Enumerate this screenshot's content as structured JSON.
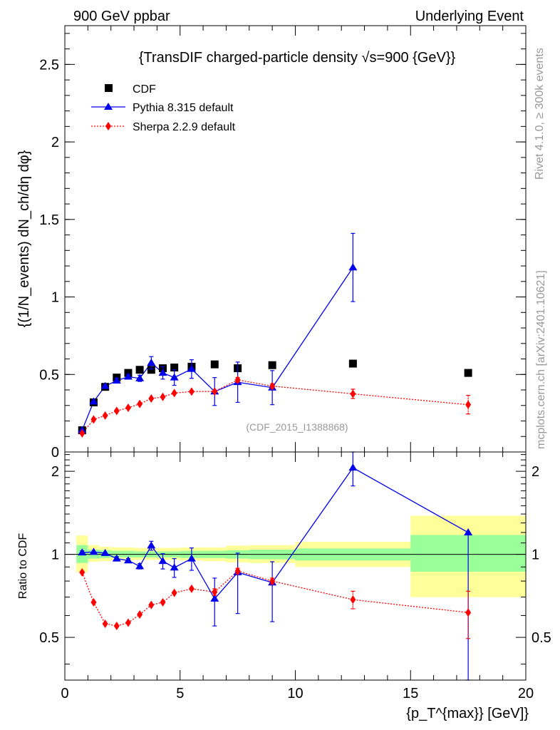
{
  "header": {
    "left": "900 GeV ppbar",
    "right": "Underlying Event"
  },
  "side_labels": {
    "rivet": "Rivet 4.1.0, ≥ 300k events",
    "mcplots": "mcplots.cern.ch [arXiv:2401.10621]"
  },
  "chart_data": [
    {
      "type": "scatter",
      "title": "{TransDIF charged-particle density √s=900 {GeV}}",
      "ylabel": "{(1/N_events) dN_ch/dη dφ}",
      "xlabel": "",
      "xlim": [
        0,
        20
      ],
      "ylim": [
        0,
        2.75
      ],
      "watermark": "(CDF_2015_I1388868)",
      "yticks": [
        {
          "v": 0,
          "label": "0"
        },
        {
          "v": 0.5,
          "label": "0.5"
        },
        {
          "v": 1,
          "label": "1"
        },
        {
          "v": 1.5,
          "label": "1.5"
        },
        {
          "v": 2,
          "label": "2"
        },
        {
          "v": 2.5,
          "label": "2.5"
        }
      ],
      "legend": [
        {
          "name": "CDF",
          "marker": "square",
          "color": "#000000"
        },
        {
          "name": "Pythia 8.315 default",
          "marker": "triangle",
          "color": "#0000ee"
        },
        {
          "name": "Sherpa 2.2.9 default",
          "marker": "diamond",
          "color": "#ff0000"
        }
      ],
      "series": [
        {
          "name": "CDF",
          "color": "#000000",
          "x": [
            0.75,
            1.25,
            1.75,
            2.25,
            2.75,
            3.25,
            3.75,
            4.25,
            4.75,
            5.5,
            6.5,
            7.5,
            9,
            12.5,
            17.5
          ],
          "y": [
            0.14,
            0.32,
            0.42,
            0.48,
            0.51,
            0.53,
            0.53,
            0.54,
            0.545,
            0.55,
            0.565,
            0.54,
            0.56,
            0.57,
            0.51
          ],
          "err": [
            0.01,
            0.01,
            0.01,
            0.01,
            0.01,
            0.01,
            0.01,
            0.01,
            0.01,
            0.01,
            0.01,
            0.01,
            0.01,
            0.01,
            0.01
          ]
        },
        {
          "name": "Pythia 8.315 default",
          "color": "#0000ee",
          "x": [
            0.75,
            1.25,
            1.75,
            2.25,
            2.75,
            3.25,
            3.75,
            4.25,
            4.75,
            5.5,
            6.5,
            7.5,
            9,
            12.5
          ],
          "y": [
            0.14,
            0.325,
            0.425,
            0.46,
            0.485,
            0.475,
            0.575,
            0.51,
            0.48,
            0.535,
            0.39,
            0.45,
            0.415,
            1.19
          ],
          "err": [
            0.01,
            0.01,
            0.01,
            0.015,
            0.015,
            0.02,
            0.04,
            0.04,
            0.05,
            0.06,
            0.09,
            0.13,
            0.11,
            0.22
          ]
        },
        {
          "name": "Sherpa 2.2.9 default",
          "color": "#ff0000",
          "x": [
            0.75,
            1.25,
            1.75,
            2.25,
            2.75,
            3.25,
            3.75,
            4.25,
            4.75,
            5.5,
            6.5,
            7.5,
            9,
            12.5,
            17.5
          ],
          "y": [
            0.12,
            0.21,
            0.235,
            0.265,
            0.285,
            0.31,
            0.345,
            0.355,
            0.38,
            0.39,
            0.39,
            0.465,
            0.425,
            0.375,
            0.305
          ],
          "err": [
            0.005,
            0.006,
            0.006,
            0.007,
            0.008,
            0.008,
            0.009,
            0.009,
            0.01,
            0.01,
            0.012,
            0.015,
            0.015,
            0.03,
            0.06
          ]
        }
      ]
    },
    {
      "type": "scatter",
      "title": "",
      "ylabel": "Ratio to CDF",
      "xlabel": "{p_T^{max}} [GeV]}",
      "xlim": [
        0,
        20
      ],
      "ylim": [
        0.35,
        2.35
      ],
      "yscale": "log",
      "xticks": [
        {
          "v": 0,
          "label": "0"
        },
        {
          "v": 5,
          "label": "5"
        },
        {
          "v": 10,
          "label": "10"
        },
        {
          "v": 15,
          "label": "15"
        },
        {
          "v": 20,
          "label": "20"
        }
      ],
      "yticks": [
        {
          "v": 0.5,
          "label": "0.5"
        },
        {
          "v": 1,
          "label": "1"
        },
        {
          "v": 2,
          "label": "2"
        }
      ],
      "uncertainty_bands": {
        "bins": [
          [
            0.5,
            1.0
          ],
          [
            1.0,
            1.5
          ],
          [
            1.5,
            2.0
          ],
          [
            2.0,
            2.5
          ],
          [
            2.5,
            3.0
          ],
          [
            3.0,
            3.5
          ],
          [
            3.5,
            4.0
          ],
          [
            4.0,
            4.5
          ],
          [
            4.5,
            5.0
          ],
          [
            5.0,
            6.0
          ],
          [
            6.0,
            7.0
          ],
          [
            7.0,
            8.0
          ],
          [
            8.0,
            10.0
          ],
          [
            10.0,
            15.0
          ],
          [
            15.0,
            20.0
          ]
        ],
        "stat_lo": [
          0.93,
          0.965,
          0.97,
          0.975,
          0.975,
          0.975,
          0.975,
          0.975,
          0.975,
          0.97,
          0.97,
          0.965,
          0.96,
          0.95,
          0.865
        ],
        "stat_hi": [
          1.08,
          1.04,
          1.035,
          1.03,
          1.03,
          1.025,
          1.025,
          1.025,
          1.025,
          1.03,
          1.03,
          1.035,
          1.04,
          1.05,
          1.175
        ],
        "tot_lo": [
          0.86,
          0.94,
          0.945,
          0.95,
          0.95,
          0.955,
          0.955,
          0.955,
          0.955,
          0.95,
          0.945,
          0.935,
          0.93,
          0.9,
          0.7
        ],
        "tot_hi": [
          1.17,
          1.08,
          1.065,
          1.06,
          1.06,
          1.055,
          1.055,
          1.055,
          1.055,
          1.06,
          1.06,
          1.075,
          1.08,
          1.11,
          1.38
        ],
        "stat_color": "#99ff99",
        "tot_color": "#ffff99"
      },
      "series": [
        {
          "name": "Pythia 8.315 default",
          "color": "#0000ee",
          "x": [
            0.75,
            1.25,
            1.75,
            2.25,
            2.75,
            3.25,
            3.75,
            4.25,
            4.75,
            5.5,
            6.5,
            7.5,
            9,
            12.5,
            17.5
          ],
          "y": [
            1.015,
            1.02,
            1.01,
            0.965,
            0.95,
            0.905,
            1.075,
            0.945,
            0.895,
            0.965,
            0.69,
            0.86,
            0.79,
            2.06,
            1.2
          ],
          "err_lo": [
            0.015,
            0.01,
            0.01,
            0.015,
            0.015,
            0.02,
            0.04,
            0.06,
            0.07,
            0.09,
            0.14,
            0.25,
            0.22,
            0.29,
            0.85
          ],
          "err_hi": [
            0.015,
            0.01,
            0.01,
            0.015,
            0.015,
            0.02,
            0.04,
            0.06,
            0.07,
            0.09,
            0.13,
            0.15,
            0.15,
            0.36,
            0
          ]
        },
        {
          "name": "Sherpa 2.2.9 default",
          "color": "#ff0000",
          "x": [
            0.75,
            1.25,
            1.75,
            2.25,
            2.75,
            3.25,
            3.75,
            4.25,
            4.75,
            5.5,
            6.5,
            7.5,
            9,
            12.5,
            17.5
          ],
          "y": [
            0.86,
            0.67,
            0.56,
            0.55,
            0.565,
            0.605,
            0.655,
            0.67,
            0.725,
            0.75,
            0.73,
            0.87,
            0.8,
            0.685,
            0.615
          ],
          "err_lo": [
            0.01,
            0.01,
            0.01,
            0.01,
            0.01,
            0.01,
            0.01,
            0.01,
            0.01,
            0.01,
            0.02,
            0.02,
            0.02,
            0.05,
            0.12
          ],
          "err_hi": [
            0.01,
            0.01,
            0.01,
            0.01,
            0.01,
            0.01,
            0.01,
            0.01,
            0.01,
            0.01,
            0.02,
            0.02,
            0.02,
            0.05,
            0.12
          ]
        }
      ]
    }
  ]
}
